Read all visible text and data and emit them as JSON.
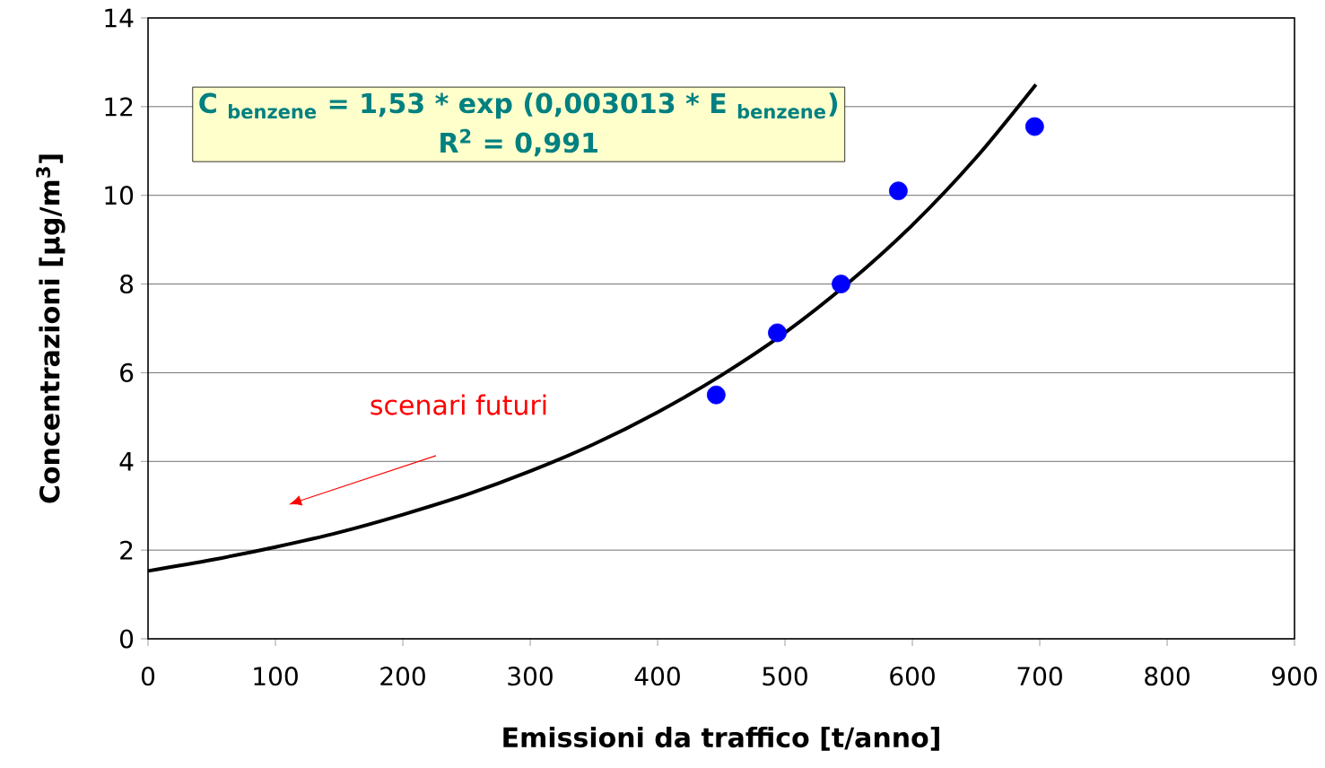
{
  "chart_data": {
    "type": "scatter",
    "xlabel": "Emissioni da traffico [t/anno]",
    "ylabel": "Concentrazioni [μg/m$^{3}$]",
    "annotations": [
      "C $_{benzene}$ = 1,53 * exp (0,003013 * E $_{benzene}$)",
      "R$^{2}$ = 0,991",
      "scenari futuri"
    ],
    "series": [
      {
        "marker": "circle",
        "color": "#0000ff",
        "x": [
          446,
          494,
          544,
          589,
          696
        ],
        "values": [
          5.5,
          6.9,
          8.0,
          10.1,
          11.55
        ]
      },
      {
        "type": "line",
        "marker": "none",
        "color": "#000000",
        "x": [
          0,
          50,
          100,
          150,
          200,
          250,
          300,
          350,
          400,
          450,
          500,
          550,
          600,
          650,
          697
        ],
        "values": [
          1.53,
          1.78,
          2.07,
          2.4,
          2.8,
          3.25,
          3.78,
          4.39,
          5.11,
          5.94,
          6.9,
          8.03,
          9.33,
          10.85,
          12.5
        ]
      }
    ],
    "xlim": [
      0,
      900
    ],
    "xticks": [
      0,
      100,
      200,
      300,
      400,
      500,
      600,
      700,
      800,
      900
    ],
    "ylim": [
      0,
      14
    ],
    "yticks": [
      0,
      2,
      4,
      6,
      8,
      10,
      12,
      14
    ],
    "grid": "y"
  }
}
